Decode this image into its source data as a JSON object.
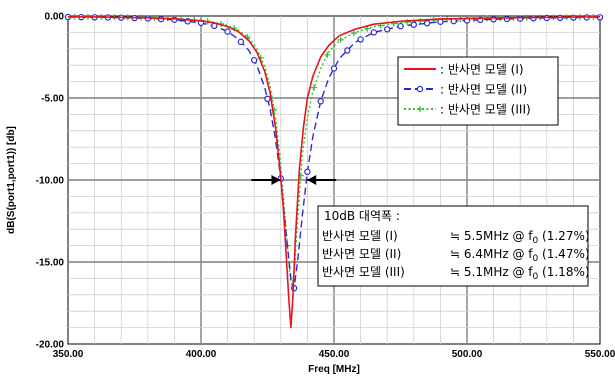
{
  "chart_data": {
    "type": "line",
    "xlabel": "Freq [MHz]",
    "ylabel": "dB(S(port1,port1)) [db]",
    "xlim": [
      350,
      550
    ],
    "ylim": [
      -20,
      0
    ],
    "x_ticks": [
      "350.00",
      "400.00",
      "450.00",
      "500.00",
      "550.00"
    ],
    "y_ticks": [
      "0.00",
      "-5.00",
      "-10.00",
      "-15.00",
      "-20.00"
    ],
    "grid": true,
    "legend_placement": "top-right",
    "series": [
      {
        "name": "반사면 모델 (I)",
        "legend_prefix": ":",
        "color": "#e8141c",
        "style": "solid",
        "marker": "none",
        "x": [
          350,
          360,
          370,
          380,
          390,
          400,
          405,
          410,
          414,
          418,
          421,
          424,
          426,
          428,
          429.5,
          431,
          432,
          433,
          433.8,
          434.6,
          435.5,
          437,
          438.5,
          440,
          442,
          445,
          448,
          452,
          458,
          465,
          475,
          490,
          510,
          530,
          550
        ],
        "values": [
          -0.05,
          -0.06,
          -0.08,
          -0.11,
          -0.17,
          -0.3,
          -0.42,
          -0.65,
          -0.95,
          -1.5,
          -2.2,
          -3.4,
          -4.7,
          -6.8,
          -9.0,
          -11.8,
          -14.5,
          -17.2,
          -19.0,
          -17.0,
          -13.5,
          -9.3,
          -6.8,
          -5.0,
          -3.7,
          -2.5,
          -1.8,
          -1.2,
          -0.8,
          -0.5,
          -0.32,
          -0.18,
          -0.12,
          -0.08,
          -0.05
        ]
      },
      {
        "name": "반사면 모델 (II)",
        "legend_prefix": ":",
        "color": "#2a2ad2",
        "style": "dashed",
        "marker": "circle",
        "x": [
          350,
          360,
          370,
          380,
          390,
          400,
          405,
          410,
          414,
          418,
          421,
          424,
          426,
          428,
          430,
          432,
          434,
          435,
          436.5,
          438,
          440,
          442,
          445,
          448,
          452,
          458,
          465,
          475,
          490,
          510,
          530,
          550
        ],
        "values": [
          -0.06,
          -0.08,
          -0.1,
          -0.15,
          -0.23,
          -0.42,
          -0.6,
          -0.95,
          -1.4,
          -2.1,
          -3.0,
          -4.4,
          -5.7,
          -7.5,
          -9.9,
          -13.3,
          -16.3,
          -16.6,
          -14.7,
          -12.3,
          -9.5,
          -7.4,
          -5.2,
          -3.8,
          -2.6,
          -1.6,
          -1.0,
          -0.62,
          -0.35,
          -0.2,
          -0.12,
          -0.08
        ]
      },
      {
        "name": "반사면 모델 (III)",
        "legend_prefix": ":",
        "color": "#2fc22a",
        "style": "dotted",
        "marker": "plus",
        "x": [
          350,
          360,
          370,
          380,
          390,
          400,
          405,
          410,
          414,
          418,
          421,
          424,
          426,
          428,
          429.5,
          431,
          432.5,
          433.5,
          434.3,
          435.2,
          436.5,
          438,
          440,
          442,
          445,
          448,
          452,
          458,
          465,
          475,
          490,
          510,
          530,
          550
        ],
        "values": [
          -0.04,
          -0.05,
          -0.07,
          -0.1,
          -0.15,
          -0.27,
          -0.38,
          -0.58,
          -0.85,
          -1.35,
          -2.0,
          -3.1,
          -4.3,
          -6.2,
          -8.3,
          -11.0,
          -14.0,
          -16.0,
          -16.4,
          -15.3,
          -12.0,
          -8.6,
          -6.2,
          -4.6,
          -3.2,
          -2.2,
          -1.5,
          -1.0,
          -0.65,
          -0.4,
          -0.22,
          -0.14,
          -0.09,
          -0.05
        ]
      }
    ],
    "annotation": {
      "title": "10dB 대역폭 :",
      "rows": [
        {
          "model": "반사면 모델 (I)",
          "approx": "≒ 5.5MHz @ f",
          "sub": "0",
          "pct": " (1.27%)"
        },
        {
          "model": "반사면 모델 (II)",
          "approx": "≒ 6.4MHz @ f",
          "sub": "0",
          "pct": " (1.47%)"
        },
        {
          "model": "반사면 모델 (III)",
          "approx": "≒ 5.1MHz @ f",
          "sub": "0",
          "pct": " (1.18%)"
        }
      ],
      "arrow_level_db": -10
    }
  }
}
